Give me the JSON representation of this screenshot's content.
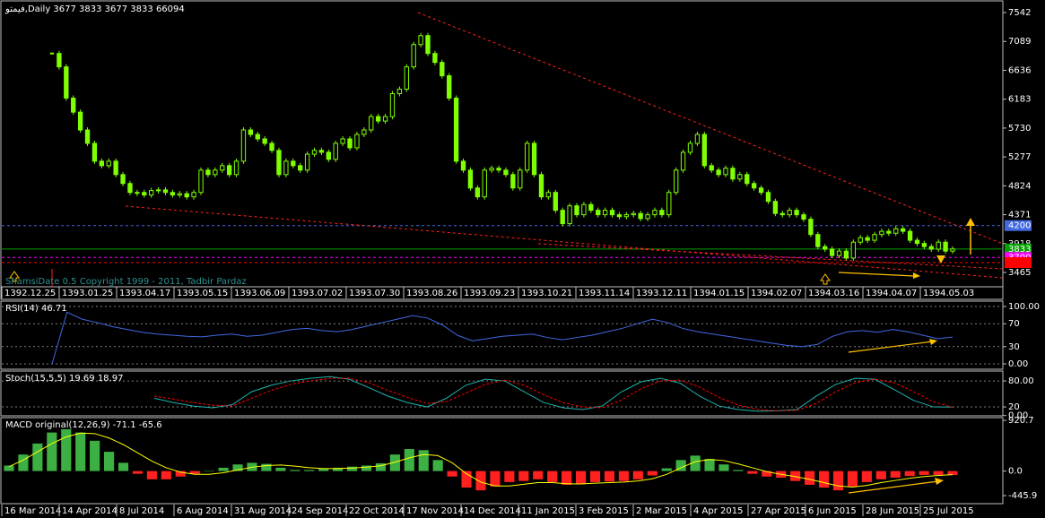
{
  "chart_data": [
    {
      "type": "candle",
      "title": "فیمتو,Daily  3677 3833 3677 3833  66094",
      "note": "ShamsiDate 0.5 Copyright 1999 - 2011, Tadbir Pardaz",
      "color": "#7fff00",
      "values": [
        6900,
        6690,
        6200,
        5980,
        5700,
        5490,
        5210,
        5140,
        5210,
        5000,
        4860,
        4720,
        4720,
        4680,
        4750,
        4760,
        4720,
        4680,
        4700,
        4650,
        4720,
        5070,
        5000,
        5070,
        5140,
        5000,
        5210,
        5700,
        5630,
        5560,
        5490,
        5380,
        5000,
        5210,
        5140,
        5070,
        5320,
        5380,
        5350,
        5240,
        5490,
        5560,
        5420,
        5630,
        5700,
        5910,
        5840,
        5910,
        6270,
        6340,
        6690,
        7040,
        7180,
        6900,
        6760,
        6550,
        6200,
        5210,
        5070,
        4790,
        4650,
        5070,
        5100,
        5070,
        5000,
        4790,
        5070,
        5490,
        5000,
        4650,
        4720,
        4440,
        4230,
        4510,
        4370,
        4530,
        4440,
        4370,
        4440,
        4370,
        4340,
        4370,
        4390,
        4310,
        4370,
        4440,
        4370,
        4720,
        5070,
        5350,
        5490,
        5630,
        5140,
        5070,
        5000,
        5100,
        4930,
        5000,
        4860,
        4790,
        4720,
        4580,
        4390,
        4370,
        4440,
        4370,
        4300,
        4060,
        3870,
        3830,
        3730,
        3800,
        3690,
        3940,
        4010,
        3970,
        4060,
        4110,
        4080,
        4150,
        4110,
        3970,
        3920,
        3870,
        3830,
        3940,
        3800,
        3833
      ],
      "ylim": [
        3268,
        7711
      ],
      "yticks": [
        3465,
        3918,
        4371,
        4824,
        5277,
        5730,
        6183,
        6636,
        7089,
        7542
      ],
      "levels": [
        {
          "value": 4200,
          "label": "4200",
          "color": "#4169e1",
          "line": "dashed"
        },
        {
          "value": 3833,
          "label": "3833",
          "color": "#00a000",
          "line": "solid"
        },
        {
          "value": 3700,
          "label": "3700",
          "color": "#ff00ff",
          "line": "dashed"
        },
        {
          "value": 3620,
          "color": "#ff0000",
          "line": "dashed"
        }
      ],
      "x_labels": [
        "1392.12.25",
        "1393.01.25",
        "1393.04.17",
        "1393.05.15",
        "1393.06.09",
        "1393.07.02",
        "1393.07.30",
        "1393.08.26",
        "1393.09.23",
        "1393.10.21",
        "1393.11.14",
        "1393.12.11",
        "1394.01.15",
        "1394.02.07",
        "1394.03.16",
        "1394.04.07",
        "1394.05.03"
      ]
    },
    {
      "type": "line",
      "title": "RSI(14) 46.71",
      "series": [
        {
          "color": "#4169e1",
          "values": [
            0,
            90,
            78,
            72,
            65,
            60,
            55,
            52,
            50,
            48,
            47,
            50,
            52,
            48,
            50,
            55,
            60,
            62,
            58,
            56,
            60,
            66,
            72,
            78,
            84,
            80,
            68,
            50,
            40,
            44,
            48,
            50,
            52,
            46,
            42,
            46,
            50,
            56,
            62,
            70,
            78,
            72,
            62,
            56,
            52,
            48,
            44,
            40,
            36,
            32,
            30,
            34,
            48,
            56,
            58,
            55,
            60,
            56,
            50,
            44,
            46.71
          ]
        }
      ],
      "ylim": [
        -9.4,
        109.4
      ],
      "yticks": [
        {
          "value": 0,
          "label": "0.00"
        },
        30,
        70,
        {
          "value": 100,
          "label": "100.00"
        }
      ],
      "grid": "dashed"
    },
    {
      "type": "line",
      "title": "Stoch(15,5,5) 19.69 18.97",
      "series": [
        {
          "color": "#20b2aa",
          "values": [
            40,
            30,
            22,
            18,
            25,
            55,
            70,
            80,
            86,
            90,
            84,
            65,
            45,
            30,
            20,
            40,
            70,
            84,
            80,
            55,
            30,
            18,
            14,
            22,
            55,
            78,
            86,
            75,
            45,
            22,
            14,
            10,
            11,
            14,
            45,
            72,
            86,
            84,
            60,
            35,
            20,
            19.69
          ]
        },
        {
          "color": "#ff0000",
          "dash": true,
          "values": [
            45,
            38,
            30,
            24,
            22,
            40,
            58,
            72,
            80,
            86,
            86,
            76,
            58,
            42,
            28,
            32,
            52,
            72,
            82,
            70,
            48,
            30,
            20,
            18,
            36,
            62,
            80,
            82,
            66,
            42,
            24,
            14,
            11,
            12,
            28,
            55,
            76,
            84,
            76,
            55,
            32,
            18.97
          ]
        }
      ],
      "ylim": [
        -0.6,
        102.9
      ],
      "yticks": [
        {
          "value": 0,
          "label": "0.00"
        },
        20,
        {
          "value": 80,
          "label": "80.00"
        }
      ],
      "grid": "dashed"
    },
    {
      "type": "combo",
      "title": "MACD original(12,26,9) -71.1 -65.6",
      "series": [
        {
          "kind": "bar",
          "pos_color": "#3cb043",
          "neg_color": "#ff2020",
          "values": [
            100,
            300,
            500,
            700,
            760,
            700,
            550,
            350,
            150,
            -50,
            -150,
            -150,
            -100,
            -50,
            0,
            60,
            120,
            150,
            130,
            60,
            20,
            20,
            40,
            60,
            80,
            100,
            140,
            300,
            400,
            380,
            200,
            -100,
            -300,
            -350,
            -280,
            -200,
            -180,
            -150,
            -200,
            -250,
            -230,
            -200,
            -190,
            -180,
            -150,
            -80,
            50,
            200,
            280,
            220,
            120,
            20,
            -50,
            -100,
            -120,
            -180,
            -250,
            -300,
            -350,
            -280,
            -200,
            -150,
            -120,
            -90,
            -70,
            -70,
            -71.1
          ]
        },
        {
          "kind": "line",
          "color": "#ffff00",
          "values": [
            80,
            200,
            350,
            500,
            620,
            690,
            680,
            600,
            480,
            330,
            180,
            60,
            -20,
            -60,
            -60,
            -30,
            20,
            70,
            100,
            110,
            90,
            60,
            45,
            45,
            55,
            70,
            95,
            160,
            240,
            300,
            280,
            150,
            -50,
            -200,
            -270,
            -270,
            -240,
            -210,
            -210,
            -230,
            -235,
            -220,
            -210,
            -200,
            -180,
            -140,
            -60,
            60,
            170,
            210,
            190,
            130,
            60,
            -10,
            -60,
            -100,
            -150,
            -210,
            -270,
            -290,
            -260,
            -210,
            -170,
            -130,
            -100,
            -80,
            -65.6
          ]
        }
      ],
      "ylim": [
        -592,
        970
      ],
      "yticks": [
        -445.9,
        {
          "value": 0,
          "label": "0.0"
        },
        920.7
      ],
      "x_labels": [
        "16 Mar 2014",
        "14 Apr 2014",
        "8 Jul 2014",
        "6 Aug 2014",
        "31 Aug 2014",
        "24 Sep 2014",
        "22 Oct 2014",
        "17 Nov 2014",
        "14 Dec 2014",
        "11 Jan 2015",
        "3 Feb 2015",
        "2 Mar 2015",
        "4 Apr 2015",
        "27 Apr 2015",
        "6 Jun 2015",
        "28 Jun 2015",
        "25 Jul 2015"
      ]
    }
  ]
}
